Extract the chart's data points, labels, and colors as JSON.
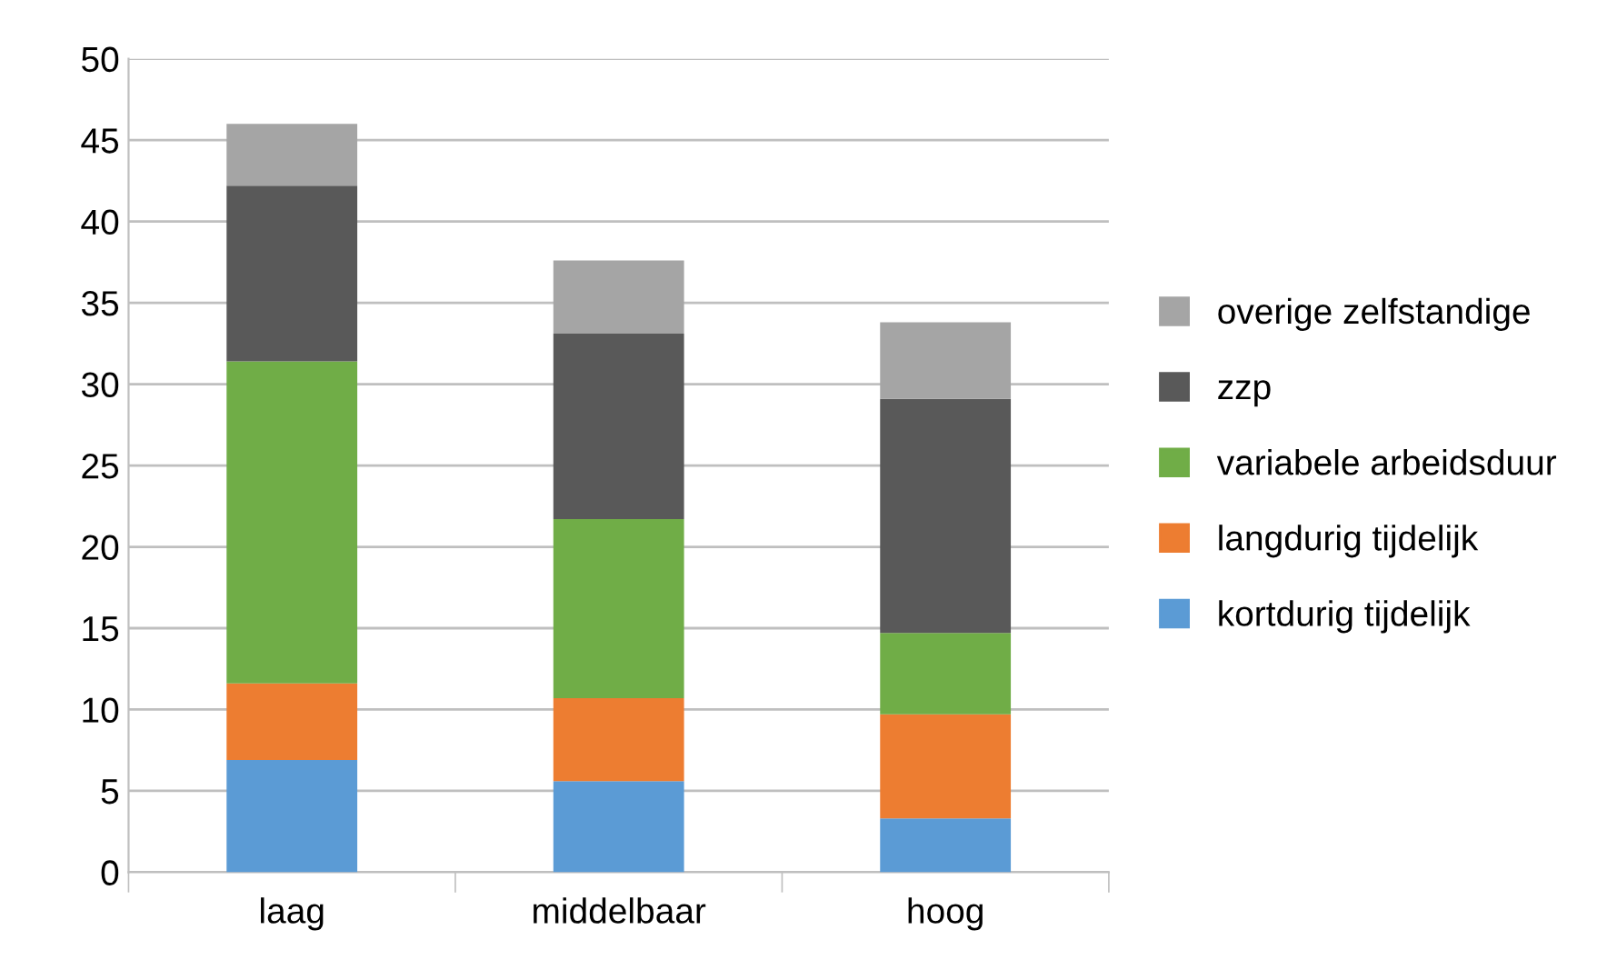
{
  "chart_data": {
    "type": "bar",
    "stacked": true,
    "categories": [
      "laag",
      "middelbaar",
      "hoog"
    ],
    "series": [
      {
        "name": "kortdurig tijdelijk",
        "color": "#5b9bd5",
        "values": [
          6.9,
          5.6,
          3.3
        ]
      },
      {
        "name": "langdurig tijdelijk",
        "color": "#ed7d31",
        "values": [
          4.7,
          5.1,
          6.4
        ]
      },
      {
        "name": "variabele arbeidsduur",
        "color": "#70ad47",
        "values": [
          19.8,
          11.0,
          5.0
        ]
      },
      {
        "name": "zzp",
        "color": "#595959",
        "values": [
          10.8,
          11.4,
          14.4
        ]
      },
      {
        "name": "overige zelfstandige",
        "color": "#a5a5a5",
        "values": [
          3.8,
          4.5,
          4.7
        ]
      }
    ],
    "ylim": [
      0,
      50
    ],
    "yticks": [
      0,
      5,
      10,
      15,
      20,
      25,
      30,
      35,
      40,
      45,
      50
    ],
    "grid": "y",
    "legend": "right"
  }
}
